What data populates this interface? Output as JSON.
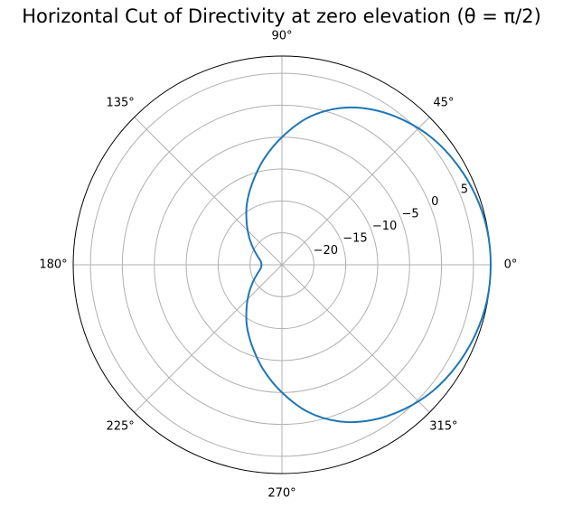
{
  "chart_data": {
    "type": "line",
    "projection": "polar",
    "title": "Horizontal Cut of Directivity at zero elevation (θ = π/2)",
    "angle_ticks": [
      "0°",
      "45°",
      "90°",
      "135°",
      "180°",
      "225°",
      "270°",
      "315°"
    ],
    "angle_tick_degrees": [
      0,
      45,
      90,
      135,
      180,
      225,
      270,
      315
    ],
    "radial_ticks": [
      "−20",
      "−15",
      "−10",
      "−5",
      "0",
      "5"
    ],
    "radial_tick_values": [
      -20,
      -15,
      -10,
      -5,
      0,
      5
    ],
    "rlim": [
      -25,
      7.7
    ],
    "radial_label_angle_deg": 22.5,
    "grid": true,
    "series": [
      {
        "color": "#1f77b4",
        "phi_deg": [
          0,
          10,
          20,
          30,
          40,
          50,
          60,
          70,
          80,
          90,
          100,
          110,
          120,
          130,
          140,
          150,
          160,
          170,
          180,
          190,
          200,
          210,
          220,
          230,
          240,
          250,
          260,
          270,
          280,
          290,
          300,
          310,
          320,
          330,
          340,
          350,
          360
        ],
        "values": [
          7.7,
          7.6,
          7.2,
          6.6,
          5.8,
          4.6,
          3.1,
          1.1,
          -1.6,
          -5.0,
          -8.3,
          -11.4,
          -14.0,
          -16.4,
          -18.3,
          -19.8,
          -20.9,
          -21.6,
          -21.8,
          -21.6,
          -20.9,
          -19.8,
          -18.3,
          -16.4,
          -14.0,
          -11.4,
          -8.3,
          -5.0,
          -1.6,
          1.1,
          3.1,
          4.6,
          5.8,
          6.6,
          7.2,
          7.6,
          7.7
        ]
      }
    ]
  }
}
